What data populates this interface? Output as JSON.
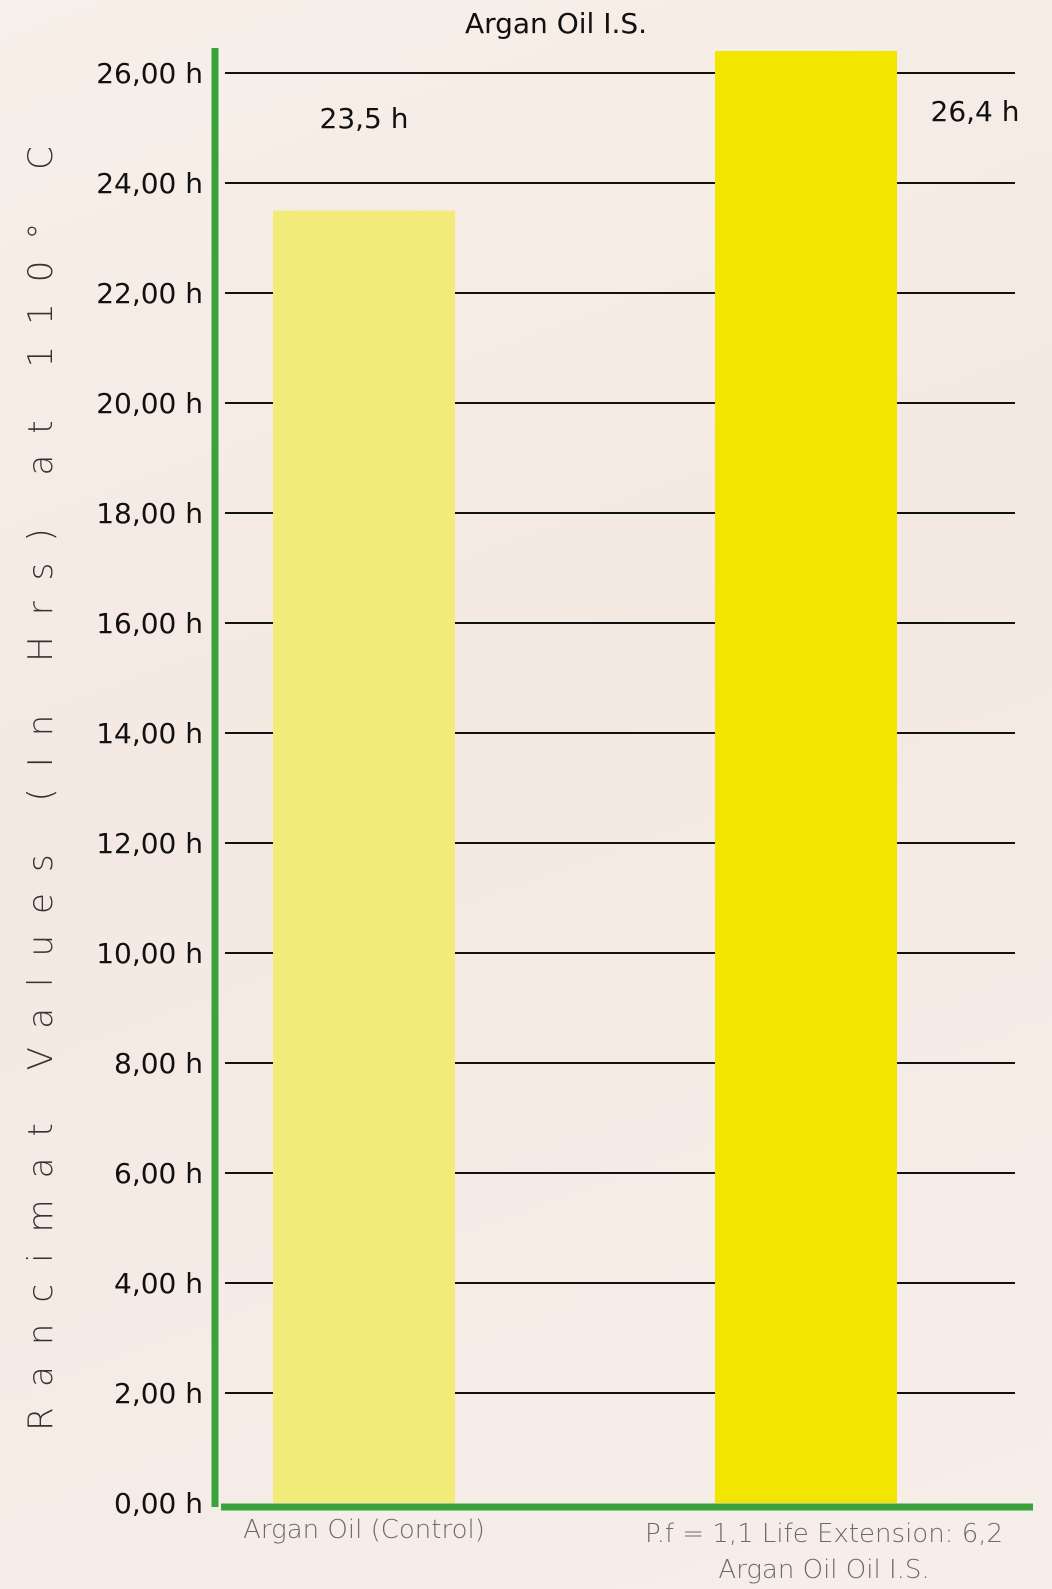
{
  "chart_data": {
    "type": "bar",
    "title": "Argan Oil I.S.",
    "ylabel": "Rancimat Values (In Hrs) at 110° C",
    "categories": [
      [
        "Argan Oil (Control)"
      ],
      [
        "P.f = 1,1 Life Extension: 6,2",
        "Argan Oil Oil I.S."
      ]
    ],
    "values": [
      23.5,
      26.4
    ],
    "data_labels": [
      "23,5 h",
      "26,4 h"
    ],
    "bar_colors": [
      "#f2ea79",
      "#f2e600"
    ],
    "yticks": [
      0,
      2,
      4,
      6,
      8,
      10,
      12,
      14,
      16,
      18,
      20,
      22,
      24,
      26
    ],
    "ytick_labels": [
      "0,00 h",
      "2,00 h",
      "4,00 h",
      "6,00 h",
      "8,00 h",
      "10,00 h",
      "12,00 h",
      "14,00 h",
      "16,00 h",
      "18,00 h",
      "20,00 h",
      "22,00 h",
      "24,00 h",
      "26,00 h"
    ],
    "ylim": [
      0,
      26.5
    ],
    "grid": true,
    "axis_color": "#3aa23a"
  }
}
